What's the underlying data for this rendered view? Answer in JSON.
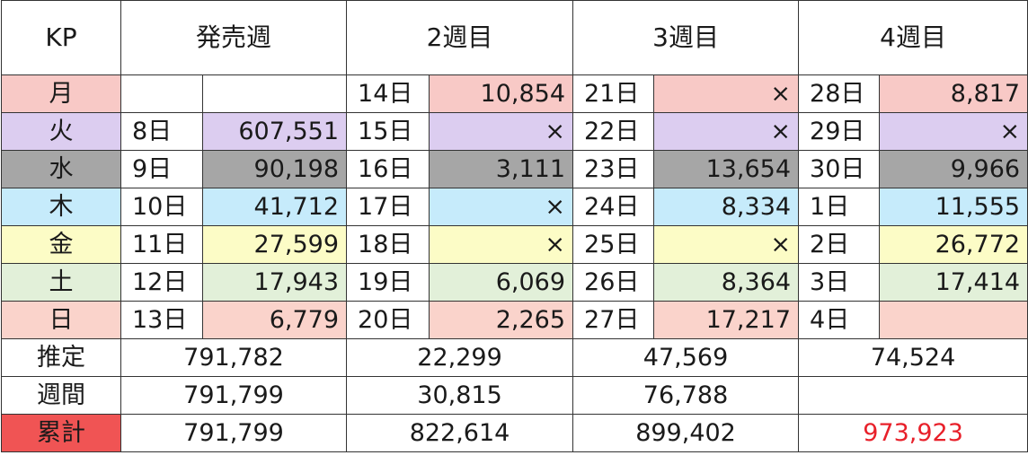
{
  "colors": {
    "mon": "#f8c9c6",
    "tue": "#dccdf0",
    "wed": "#a6a6a6",
    "thu": "#c6ebfb",
    "fri": "#fcfcc6",
    "sat": "#e2f0d9",
    "sun": "#fad3cb",
    "cumulative_label": "#f05454",
    "highlight_text": "#e8202a"
  },
  "header": {
    "corner": "KP",
    "weeks": [
      "発売週",
      "2週目",
      "3週目",
      "4週目"
    ]
  },
  "days": [
    {
      "label": "月",
      "color_key": "mon",
      "cells": [
        [
          "",
          ""
        ],
        [
          "14日",
          "10,854"
        ],
        [
          "21日",
          "×"
        ],
        [
          "28日",
          "8,817"
        ]
      ]
    },
    {
      "label": "火",
      "color_key": "tue",
      "cells": [
        [
          "8日",
          "607,551"
        ],
        [
          "15日",
          "×"
        ],
        [
          "22日",
          "×"
        ],
        [
          "29日",
          "×"
        ]
      ]
    },
    {
      "label": "水",
      "color_key": "wed",
      "cells": [
        [
          "9日",
          "90,198"
        ],
        [
          "16日",
          "3,111"
        ],
        [
          "23日",
          "13,654"
        ],
        [
          "30日",
          "9,966"
        ]
      ]
    },
    {
      "label": "木",
      "color_key": "thu",
      "cells": [
        [
          "10日",
          "41,712"
        ],
        [
          "17日",
          "×"
        ],
        [
          "24日",
          "8,334"
        ],
        [
          "1日",
          "11,555"
        ]
      ]
    },
    {
      "label": "金",
      "color_key": "fri",
      "cells": [
        [
          "11日",
          "27,599"
        ],
        [
          "18日",
          "×"
        ],
        [
          "25日",
          "×"
        ],
        [
          "2日",
          "26,772"
        ]
      ]
    },
    {
      "label": "土",
      "color_key": "sat",
      "cells": [
        [
          "12日",
          "17,943"
        ],
        [
          "19日",
          "6,069"
        ],
        [
          "26日",
          "8,364"
        ],
        [
          "3日",
          "17,414"
        ]
      ]
    },
    {
      "label": "日",
      "color_key": "sun",
      "cells": [
        [
          "13日",
          "6,779"
        ],
        [
          "20日",
          "2,265"
        ],
        [
          "27日",
          "17,217"
        ],
        [
          "4日",
          ""
        ]
      ]
    }
  ],
  "summary": [
    {
      "label": "推定",
      "values": [
        "791,782",
        "22,299",
        "47,569",
        "74,524"
      ]
    },
    {
      "label": "週間",
      "values": [
        "791,799",
        "30,815",
        "76,788",
        ""
      ]
    },
    {
      "label": "累計",
      "values": [
        "791,799",
        "822,614",
        "899,402",
        "973,923"
      ]
    }
  ]
}
